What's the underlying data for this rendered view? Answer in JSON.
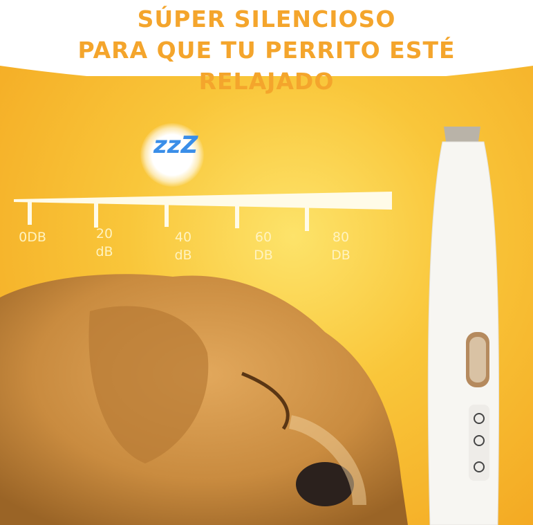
{
  "headline": {
    "lines": [
      "SÚPER SILENCIOSO",
      "PARA QUE TU PERRITO ESTÉ",
      "RELAJADO"
    ],
    "color": "#f4a52c"
  },
  "sleep_icon": {
    "text": "zzZ",
    "icon": "sleep-zzz-icon",
    "color": "#3a8ee8"
  },
  "noise_scale": {
    "ticks": [
      {
        "line1": "0DB",
        "line2": ""
      },
      {
        "line1": "20",
        "line2": "dB"
      },
      {
        "line1": "40",
        "line2": "dB"
      },
      {
        "line1": "60",
        "line2": "DB"
      },
      {
        "line1": "80",
        "line2": "DB"
      }
    ]
  },
  "background_color": "#f9c63a"
}
